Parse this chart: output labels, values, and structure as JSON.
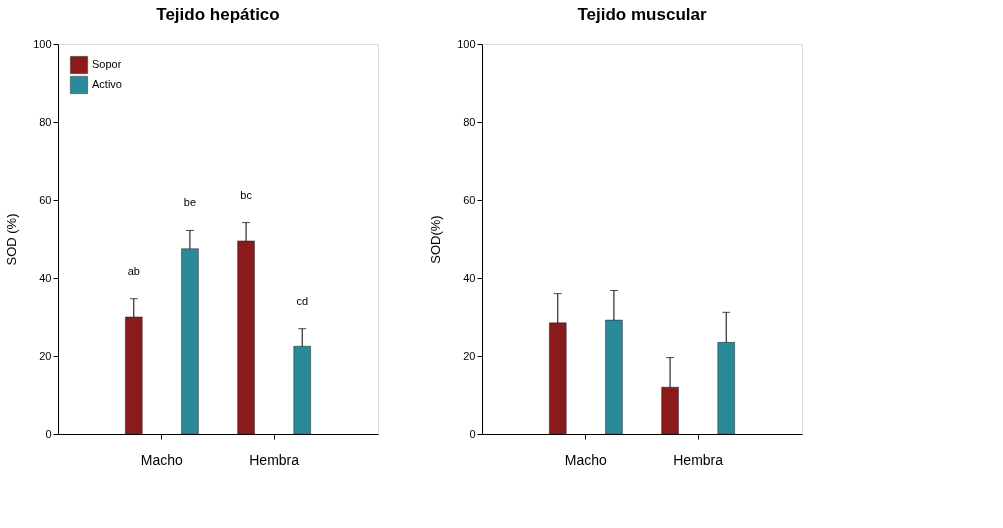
{
  "chart_data": [
    {
      "type": "bar",
      "title": "Tejido hepático",
      "ylabel": "SOD (%)",
      "categories": [
        "Macho",
        "Hembra"
      ],
      "ylim": [
        0,
        100
      ],
      "yticks": [
        0,
        20,
        40,
        60,
        80,
        100
      ],
      "grid": false,
      "legend": "top left",
      "series": [
        {
          "name": "Sopor",
          "color": "#8b1a1a",
          "values": [
            30,
            49.5
          ],
          "errors": [
            4.7,
            4.7
          ]
        },
        {
          "name": "Activo",
          "color": "#2a8a9a",
          "values": [
            47.5,
            22.5
          ],
          "errors": [
            4.7,
            4.5
          ]
        }
      ],
      "annotations": [
        "ab",
        "be",
        "bc",
        "cd"
      ]
    },
    {
      "type": "bar",
      "title": "Tejido muscular",
      "ylabel": "SOD(%)",
      "categories": [
        "Macho",
        "Hembra"
      ],
      "ylim": [
        0,
        100
      ],
      "yticks": [
        0,
        20,
        40,
        60,
        80,
        100
      ],
      "grid": false,
      "legend": "top left",
      "series": [
        {
          "name": "Sopor",
          "color": "#8b1a1a",
          "values": [
            28.5,
            12
          ],
          "errors": [
            7.5,
            7.6
          ]
        },
        {
          "name": "Activo",
          "color": "#2a8a9a",
          "values": [
            29.2,
            23.5
          ],
          "errors": [
            7.6,
            7.7
          ]
        }
      ]
    }
  ]
}
